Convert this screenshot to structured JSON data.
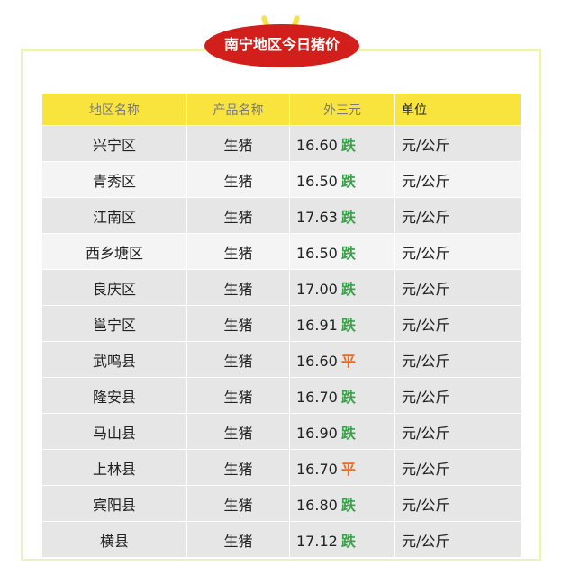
{
  "title": "南宁地区今日猪价",
  "colors": {
    "badge": "#d21f1b",
    "header": "#f9e43e",
    "down": "#3aa14a",
    "flat": "#f06a1a"
  },
  "headers": [
    "地区名称",
    "产品名称",
    "外三元",
    "单位"
  ],
  "rows": [
    {
      "region": "兴宁区",
      "product": "生猪",
      "price": "16.60",
      "trend": "跌",
      "unit": "元/公斤"
    },
    {
      "region": "青秀区",
      "product": "生猪",
      "price": "16.50",
      "trend": "跌",
      "unit": "元/公斤"
    },
    {
      "region": "江南区",
      "product": "生猪",
      "price": "17.63",
      "trend": "跌",
      "unit": "元/公斤"
    },
    {
      "region": "西乡塘区",
      "product": "生猪",
      "price": "16.50",
      "trend": "跌",
      "unit": "元/公斤"
    },
    {
      "region": "良庆区",
      "product": "生猪",
      "price": "17.00",
      "trend": "跌",
      "unit": "元/公斤"
    },
    {
      "region": "邕宁区",
      "product": "生猪",
      "price": "16.91",
      "trend": "跌",
      "unit": "元/公斤"
    },
    {
      "region": "武鸣县",
      "product": "生猪",
      "price": "16.60",
      "trend": "平",
      "unit": "元/公斤"
    },
    {
      "region": "隆安县",
      "product": "生猪",
      "price": "16.70",
      "trend": "跌",
      "unit": "元/公斤"
    },
    {
      "region": "马山县",
      "product": "生猪",
      "price": "16.90",
      "trend": "跌",
      "unit": "元/公斤"
    },
    {
      "region": "上林县",
      "product": "生猪",
      "price": "16.70",
      "trend": "平",
      "unit": "元/公斤"
    },
    {
      "region": "宾阳县",
      "product": "生猪",
      "price": "16.80",
      "trend": "跌",
      "unit": "元/公斤"
    },
    {
      "region": "横县",
      "product": "生猪",
      "price": "17.12",
      "trend": "跌",
      "unit": "元/公斤"
    }
  ]
}
